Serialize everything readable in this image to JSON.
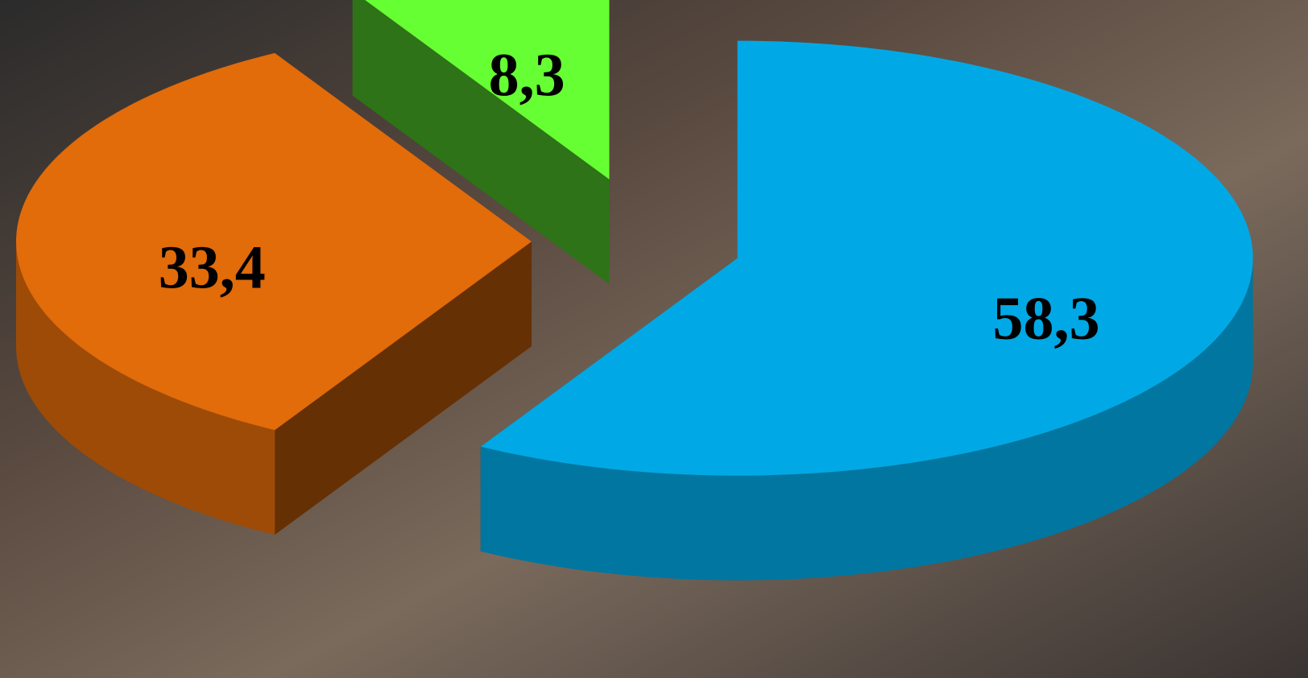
{
  "chart_data": {
    "type": "pie",
    "categories": [
      null,
      null,
      null
    ],
    "values": [
      58.3,
      33.4,
      8.3
    ],
    "value_labels": [
      "58,3",
      "33,4",
      "8,3"
    ],
    "colors": [
      "#00a9e6",
      "#e26b0a",
      "#66ff33"
    ]
  }
}
